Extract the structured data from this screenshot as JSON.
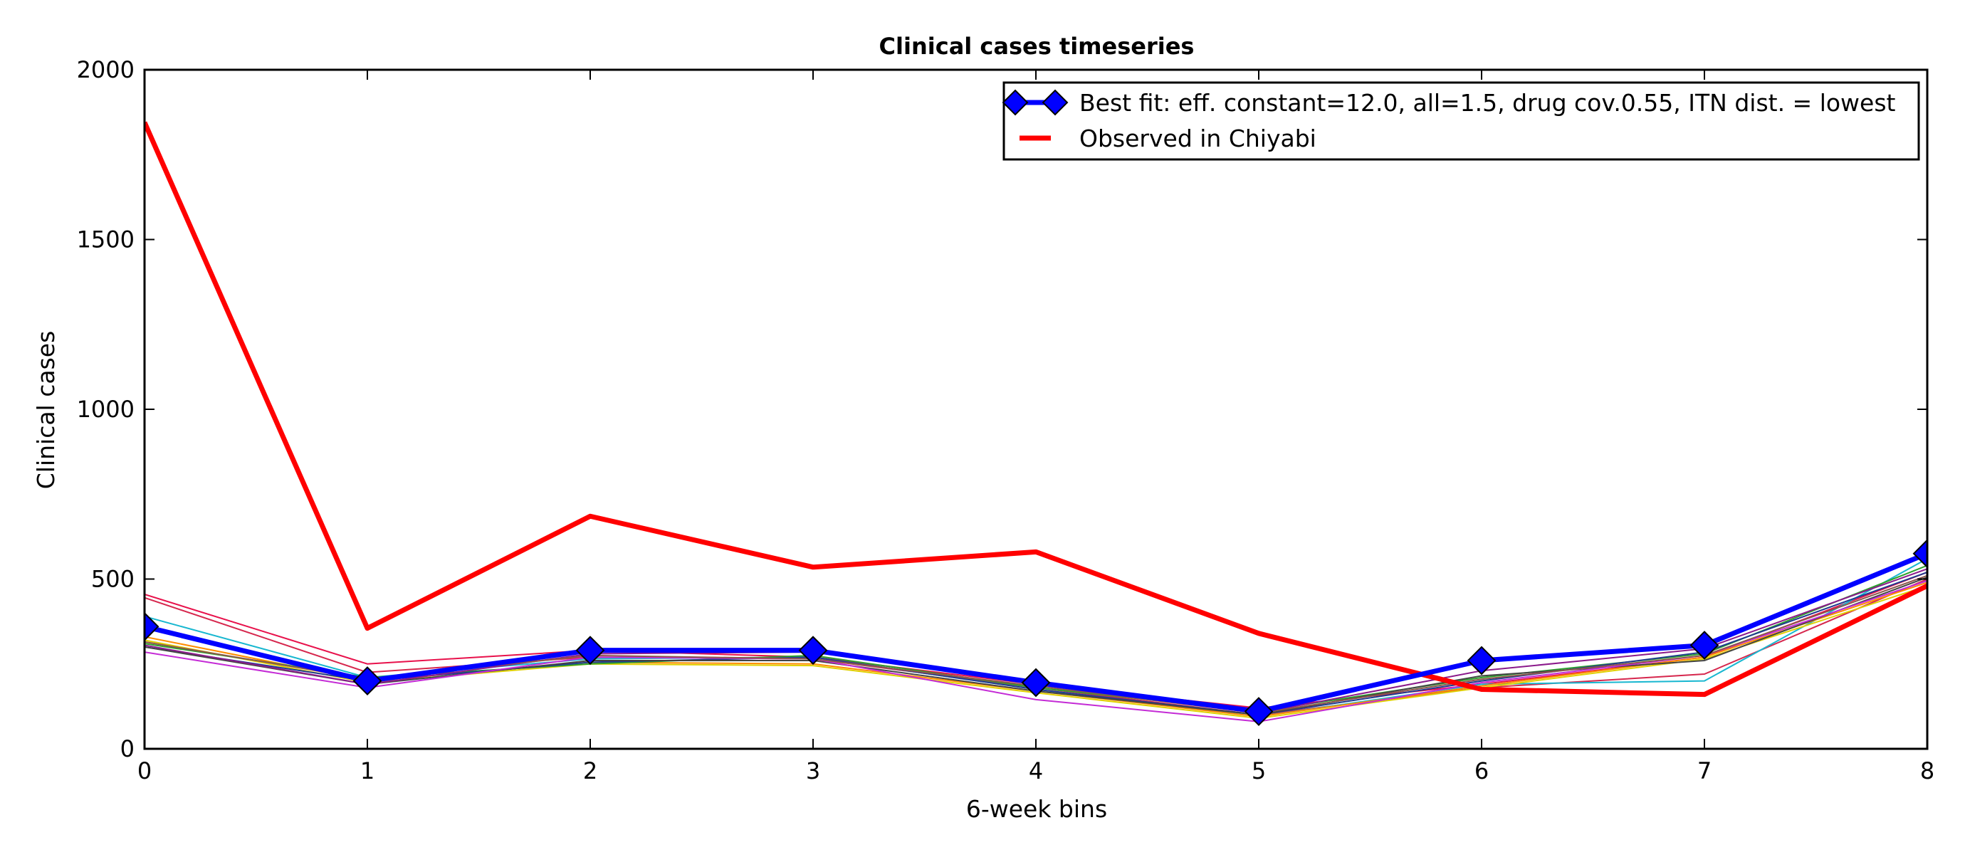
{
  "chart_data": {
    "type": "line",
    "title": "Clinical cases timeseries",
    "xlabel": "6-week bins",
    "ylabel": "Clinical cases",
    "xlim": [
      0,
      8
    ],
    "ylim": [
      0,
      2000
    ],
    "x_ticks": [
      "0",
      "1",
      "2",
      "3",
      "4",
      "5",
      "6",
      "7",
      "8"
    ],
    "y_ticks": [
      "0",
      "500",
      "1000",
      "1500",
      "2000"
    ],
    "x": [
      0,
      1,
      2,
      3,
      4,
      5,
      6,
      7,
      8
    ],
    "legend_position": "top-right",
    "grid": false,
    "series": [
      {
        "name": "Best fit: eff. constant=12.0, all=1.5, drug cov.0.55, ITN dist. = lowest",
        "values": [
          360,
          200,
          290,
          290,
          195,
          110,
          260,
          305,
          575
        ],
        "color": "#0000ff",
        "marker": "diamond",
        "legend": true
      },
      {
        "name": "Observed in Chiyabi",
        "values": [
          1845,
          355,
          685,
          535,
          580,
          340,
          175,
          160,
          480
        ],
        "color": "#ff0000",
        "marker": "none",
        "legend": true
      }
    ],
    "background_series": [
      {
        "values": [
          455,
          250,
          290,
          270,
          190,
          120,
          190,
          270,
          520
        ],
        "color": "#e8114b"
      },
      {
        "values": [
          445,
          225,
          270,
          265,
          180,
          100,
          180,
          220,
          500
        ],
        "color": "#d6274d"
      },
      {
        "values": [
          390,
          210,
          265,
          270,
          175,
          95,
          190,
          200,
          560
        ],
        "color": "#18b7d0"
      },
      {
        "values": [
          330,
          200,
          255,
          250,
          170,
          95,
          185,
          270,
          490
        ],
        "color": "#ff8c00"
      },
      {
        "values": [
          320,
          195,
          250,
          245,
          165,
          90,
          180,
          265,
          480
        ],
        "color": "#e0d000"
      },
      {
        "values": [
          310,
          210,
          250,
          275,
          180,
          110,
          210,
          280,
          540
        ],
        "color": "#2ca02c"
      },
      {
        "values": [
          300,
          200,
          255,
          270,
          175,
          100,
          200,
          285,
          520
        ],
        "color": "#1f3a8f"
      },
      {
        "values": [
          300,
          190,
          260,
          260,
          170,
          100,
          215,
          260,
          505
        ],
        "color": "#444444"
      },
      {
        "values": [
          285,
          180,
          270,
          265,
          145,
          80,
          195,
          275,
          495
        ],
        "color": "#c42bd6"
      },
      {
        "values": [
          305,
          190,
          280,
          285,
          200,
          105,
          230,
          295,
          530
        ],
        "color": "#8b1a8b"
      },
      {
        "values": [
          315,
          205,
          275,
          265,
          185,
          105,
          205,
          275,
          510
        ],
        "color": "#8c564b"
      }
    ]
  }
}
